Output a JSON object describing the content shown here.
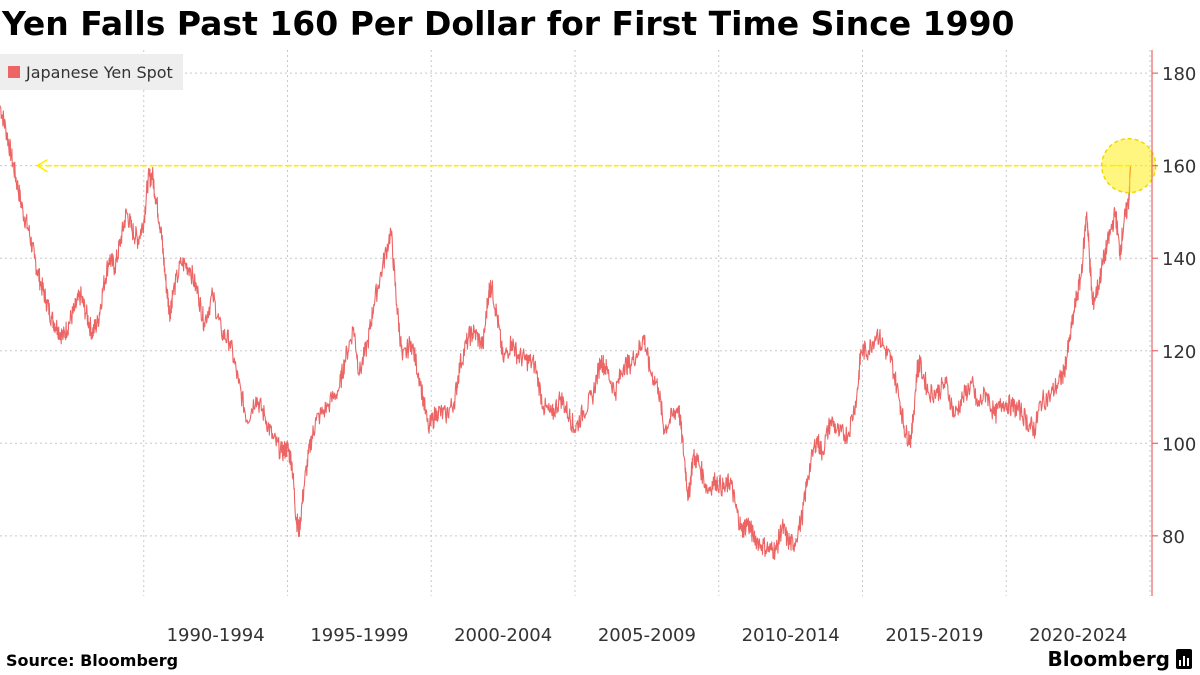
{
  "page": {
    "title": "Yen Falls Past 160 Per Dollar for First Time Since 1990",
    "source": "Source: Bloomberg",
    "brand": "Bloomberg"
  },
  "chart_data": {
    "type": "line",
    "title": "Yen Falls Past 160 Per Dollar for First Time Since 1990",
    "series": [
      {
        "name": "Japanese Yen Spot",
        "color": "#ec6464",
        "points": [
          [
            1985.0,
            173
          ],
          [
            1985.2,
            168
          ],
          [
            1985.4,
            162
          ],
          [
            1985.6,
            156
          ],
          [
            1985.8,
            150
          ],
          [
            1986.0,
            146
          ],
          [
            1986.2,
            140
          ],
          [
            1986.4,
            135
          ],
          [
            1986.6,
            131
          ],
          [
            1986.8,
            127
          ],
          [
            1987.0,
            125
          ],
          [
            1987.2,
            123
          ],
          [
            1987.4,
            126
          ],
          [
            1987.6,
            129
          ],
          [
            1987.8,
            132
          ],
          [
            1988.0,
            128
          ],
          [
            1988.2,
            124
          ],
          [
            1988.4,
            126
          ],
          [
            1988.6,
            134
          ],
          [
            1988.8,
            140
          ],
          [
            1989.0,
            138
          ],
          [
            1989.2,
            144
          ],
          [
            1989.4,
            150
          ],
          [
            1989.6,
            146
          ],
          [
            1989.8,
            144
          ],
          [
            1990.0,
            148
          ],
          [
            1990.15,
            157
          ],
          [
            1990.3,
            158
          ],
          [
            1990.45,
            152
          ],
          [
            1990.6,
            146
          ],
          [
            1990.75,
            136
          ],
          [
            1990.9,
            128
          ],
          [
            1991.0,
            132
          ],
          [
            1991.3,
            139
          ],
          [
            1991.6,
            138
          ],
          [
            1991.9,
            132
          ],
          [
            1992.1,
            126
          ],
          [
            1992.4,
            132
          ],
          [
            1992.7,
            124
          ],
          [
            1993.0,
            122
          ],
          [
            1993.3,
            113
          ],
          [
            1993.6,
            105
          ],
          [
            1993.9,
            110
          ],
          [
            1994.2,
            106
          ],
          [
            1994.5,
            101
          ],
          [
            1994.8,
            98
          ],
          [
            1995.0,
            99
          ],
          [
            1995.15,
            96
          ],
          [
            1995.3,
            84
          ],
          [
            1995.4,
            81
          ],
          [
            1995.6,
            92
          ],
          [
            1995.8,
            100
          ],
          [
            1996.0,
            105
          ],
          [
            1996.4,
            108
          ],
          [
            1996.8,
            112
          ],
          [
            1997.0,
            118
          ],
          [
            1997.3,
            125
          ],
          [
            1997.5,
            115
          ],
          [
            1997.8,
            122
          ],
          [
            1998.0,
            130
          ],
          [
            1998.3,
            138
          ],
          [
            1998.6,
            146
          ],
          [
            1998.8,
            130
          ],
          [
            1999.0,
            118
          ],
          [
            1999.3,
            122
          ],
          [
            1999.6,
            114
          ],
          [
            1999.9,
            103
          ],
          [
            2000.2,
            107
          ],
          [
            2000.5,
            106
          ],
          [
            2000.8,
            109
          ],
          [
            2001.0,
            117
          ],
          [
            2001.3,
            123
          ],
          [
            2001.5,
            124
          ],
          [
            2001.8,
            121
          ],
          [
            2002.0,
            133
          ],
          [
            2002.1,
            134
          ],
          [
            2002.3,
            127
          ],
          [
            2002.5,
            118
          ],
          [
            2002.8,
            122
          ],
          [
            2003.0,
            119
          ],
          [
            2003.3,
            118
          ],
          [
            2003.6,
            117
          ],
          [
            2003.9,
            108
          ],
          [
            2004.2,
            106
          ],
          [
            2004.5,
            110
          ],
          [
            2004.8,
            106
          ],
          [
            2005.0,
            103
          ],
          [
            2005.3,
            107
          ],
          [
            2005.6,
            110
          ],
          [
            2005.9,
            118
          ],
          [
            2006.1,
            116
          ],
          [
            2006.4,
            111
          ],
          [
            2006.7,
            117
          ],
          [
            2006.9,
            117
          ],
          [
            2007.2,
            120
          ],
          [
            2007.4,
            123
          ],
          [
            2007.6,
            116
          ],
          [
            2007.9,
            112
          ],
          [
            2008.1,
            103
          ],
          [
            2008.4,
            106
          ],
          [
            2008.6,
            108
          ],
          [
            2008.8,
            97
          ],
          [
            2008.95,
            88
          ],
          [
            2009.1,
            97
          ],
          [
            2009.3,
            96
          ],
          [
            2009.6,
            90
          ],
          [
            2009.9,
            92
          ],
          [
            2010.2,
            90
          ],
          [
            2010.4,
            92
          ],
          [
            2010.6,
            86
          ],
          [
            2010.8,
            81
          ],
          [
            2011.0,
            83
          ],
          [
            2011.2,
            80
          ],
          [
            2011.5,
            78
          ],
          [
            2011.8,
            77
          ],
          [
            2012.0,
            77
          ],
          [
            2012.2,
            82
          ],
          [
            2012.4,
            79
          ],
          [
            2012.6,
            78
          ],
          [
            2012.9,
            84
          ],
          [
            2013.1,
            93
          ],
          [
            2013.4,
            101
          ],
          [
            2013.6,
            98
          ],
          [
            2013.9,
            105
          ],
          [
            2014.2,
            102
          ],
          [
            2014.5,
            102
          ],
          [
            2014.8,
            110
          ],
          [
            2014.95,
            120
          ],
          [
            2015.2,
            120
          ],
          [
            2015.5,
            124
          ],
          [
            2015.8,
            120
          ],
          [
            2016.0,
            118
          ],
          [
            2016.3,
            109
          ],
          [
            2016.5,
            102
          ],
          [
            2016.7,
            101
          ],
          [
            2016.9,
            116
          ],
          [
            2017.0,
            117
          ],
          [
            2017.3,
            111
          ],
          [
            2017.6,
            111
          ],
          [
            2017.9,
            113
          ],
          [
            2018.2,
            106
          ],
          [
            2018.5,
            110
          ],
          [
            2018.8,
            113
          ],
          [
            2019.0,
            108
          ],
          [
            2019.3,
            111
          ],
          [
            2019.6,
            106
          ],
          [
            2019.9,
            109
          ],
          [
            2020.2,
            108
          ],
          [
            2020.5,
            107
          ],
          [
            2020.8,
            104
          ],
          [
            2021.0,
            103
          ],
          [
            2021.2,
            109
          ],
          [
            2021.5,
            110
          ],
          [
            2021.8,
            113
          ],
          [
            2022.0,
            115
          ],
          [
            2022.2,
            122
          ],
          [
            2022.4,
            130
          ],
          [
            2022.6,
            136
          ],
          [
            2022.8,
            150
          ],
          [
            2022.9,
            140
          ],
          [
            2023.0,
            130
          ],
          [
            2023.2,
            134
          ],
          [
            2023.4,
            140
          ],
          [
            2023.6,
            145
          ],
          [
            2023.8,
            150
          ],
          [
            2023.95,
            141
          ],
          [
            2024.1,
            148
          ],
          [
            2024.25,
            152
          ],
          [
            2024.33,
            160
          ]
        ]
      }
    ],
    "categories": [
      "1990-1994",
      "1995-1999",
      "2000-2004",
      "2005-2009",
      "2010-2014",
      "2015-2019",
      "2020-2024"
    ],
    "category_starts": [
      1990,
      1995,
      2000,
      2005,
      2010,
      2015,
      2020
    ],
    "xlim": [
      1985.0,
      2025.0
    ],
    "ylim": [
      67,
      185
    ],
    "yticks": [
      80,
      100,
      120,
      140,
      160,
      180
    ],
    "ylabel_position": "right",
    "grid": true,
    "legend_position": "top-left",
    "annotation": {
      "type": "horizontal-reference",
      "value": 160,
      "from_x": 2024.33,
      "to_x": 1986.3,
      "color": "#ffee00",
      "marker": "circle-at-latest"
    }
  }
}
